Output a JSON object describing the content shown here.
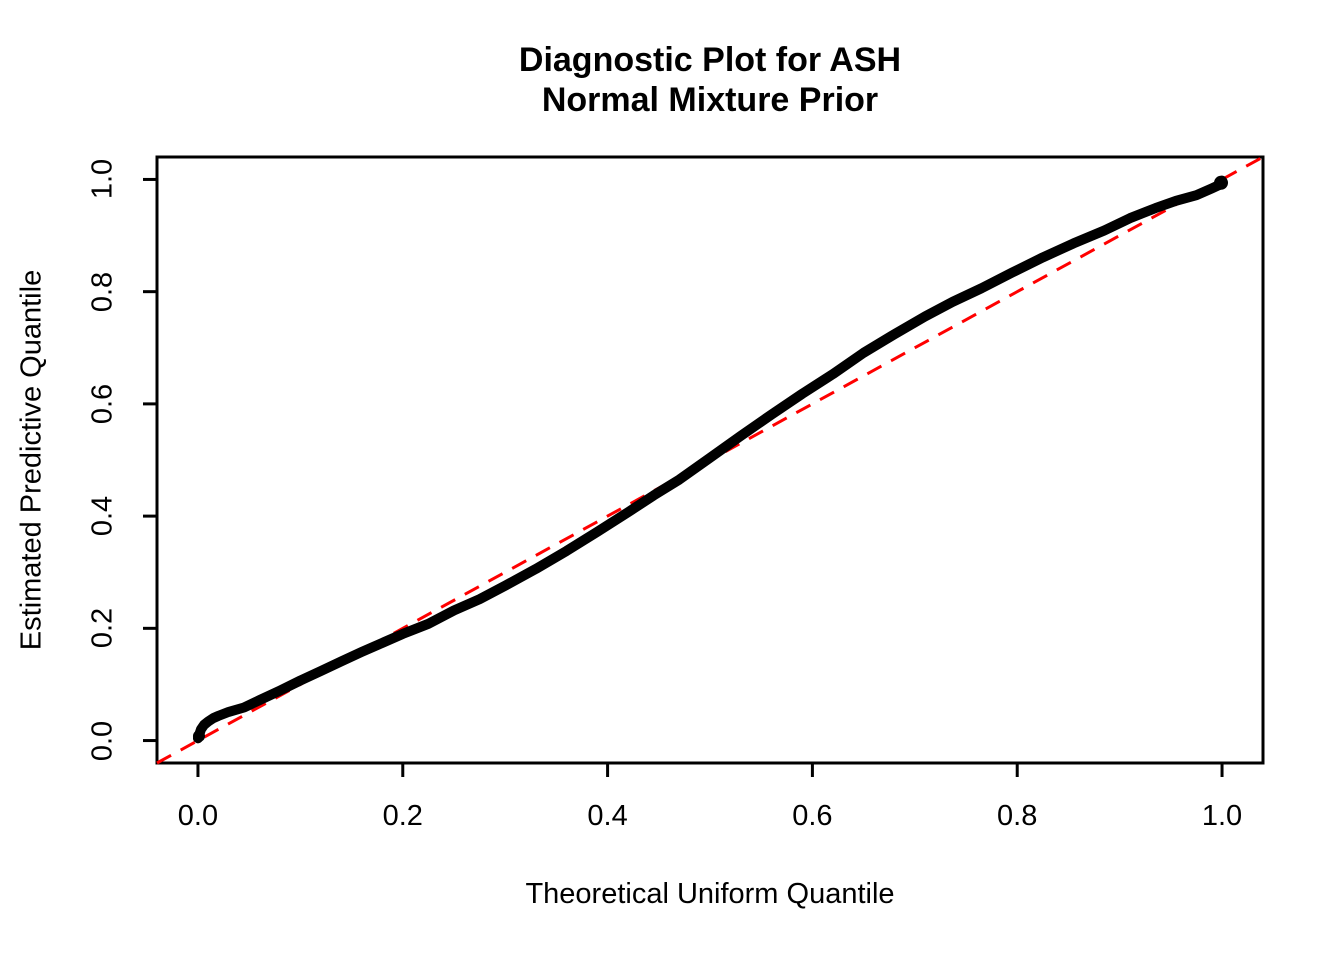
{
  "chart_data": {
    "type": "scatter",
    "title_lines": [
      "Diagnostic Plot for ASH",
      "Normal Mixture Prior"
    ],
    "xlabel": "Theoretical Uniform Quantile",
    "ylabel": "Estimated Predictive Quantile",
    "xlim": [
      -0.04,
      1.04
    ],
    "ylim": [
      -0.04,
      1.04
    ],
    "grid": false,
    "legend": "none",
    "x_ticks": {
      "values": [
        0.0,
        0.2,
        0.4,
        0.6,
        0.8,
        1.0
      ],
      "labels": [
        "0.0",
        "0.2",
        "0.4",
        "0.6",
        "0.8",
        "1.0"
      ]
    },
    "y_ticks": {
      "values": [
        0.0,
        0.2,
        0.4,
        0.6,
        0.8,
        1.0
      ],
      "labels": [
        "0.0",
        "0.2",
        "0.4",
        "0.6",
        "0.8",
        "1.0"
      ]
    },
    "series": [
      {
        "name": "estimated-predictive-quantiles",
        "style": "dense-point-curve",
        "color": "#000000",
        "points": [
          [
            0.0,
            0.004
          ],
          [
            0.003,
            0.02
          ],
          [
            0.006,
            0.028
          ],
          [
            0.01,
            0.034
          ],
          [
            0.015,
            0.04
          ],
          [
            0.02,
            0.044
          ],
          [
            0.03,
            0.051
          ],
          [
            0.045,
            0.059
          ],
          [
            0.06,
            0.072
          ],
          [
            0.08,
            0.089
          ],
          [
            0.1,
            0.107
          ],
          [
            0.12,
            0.124
          ],
          [
            0.14,
            0.141
          ],
          [
            0.16,
            0.158
          ],
          [
            0.18,
            0.174
          ],
          [
            0.2,
            0.19
          ],
          [
            0.225,
            0.208
          ],
          [
            0.25,
            0.232
          ],
          [
            0.275,
            0.252
          ],
          [
            0.3,
            0.276
          ],
          [
            0.33,
            0.306
          ],
          [
            0.36,
            0.338
          ],
          [
            0.39,
            0.372
          ],
          [
            0.42,
            0.407
          ],
          [
            0.445,
            0.437
          ],
          [
            0.47,
            0.465
          ],
          [
            0.5,
            0.504
          ],
          [
            0.53,
            0.543
          ],
          [
            0.56,
            0.581
          ],
          [
            0.59,
            0.618
          ],
          [
            0.62,
            0.653
          ],
          [
            0.65,
            0.691
          ],
          [
            0.68,
            0.724
          ],
          [
            0.71,
            0.756
          ],
          [
            0.737,
            0.782
          ],
          [
            0.765,
            0.806
          ],
          [
            0.795,
            0.834
          ],
          [
            0.825,
            0.861
          ],
          [
            0.855,
            0.886
          ],
          [
            0.885,
            0.909
          ],
          [
            0.91,
            0.931
          ],
          [
            0.935,
            0.949
          ],
          [
            0.955,
            0.962
          ],
          [
            0.975,
            0.972
          ],
          [
            0.99,
            0.984
          ],
          [
            0.997,
            0.99
          ],
          [
            1.0,
            0.998
          ]
        ],
        "end_markers": [
          {
            "at": [
              0.001,
              0.008
            ],
            "r": 6
          },
          {
            "at": [
              0.999,
              0.994
            ],
            "r": 7
          }
        ]
      }
    ],
    "reference_line": {
      "name": "identity-line",
      "from": [
        -0.04,
        -0.04
      ],
      "to": [
        1.04,
        1.04
      ],
      "color": "#FF0000",
      "style": "dashed"
    },
    "colors": {
      "curve": "#000000",
      "reference": "#FF0000",
      "axis": "#000000",
      "background": "#FFFFFF"
    }
  }
}
